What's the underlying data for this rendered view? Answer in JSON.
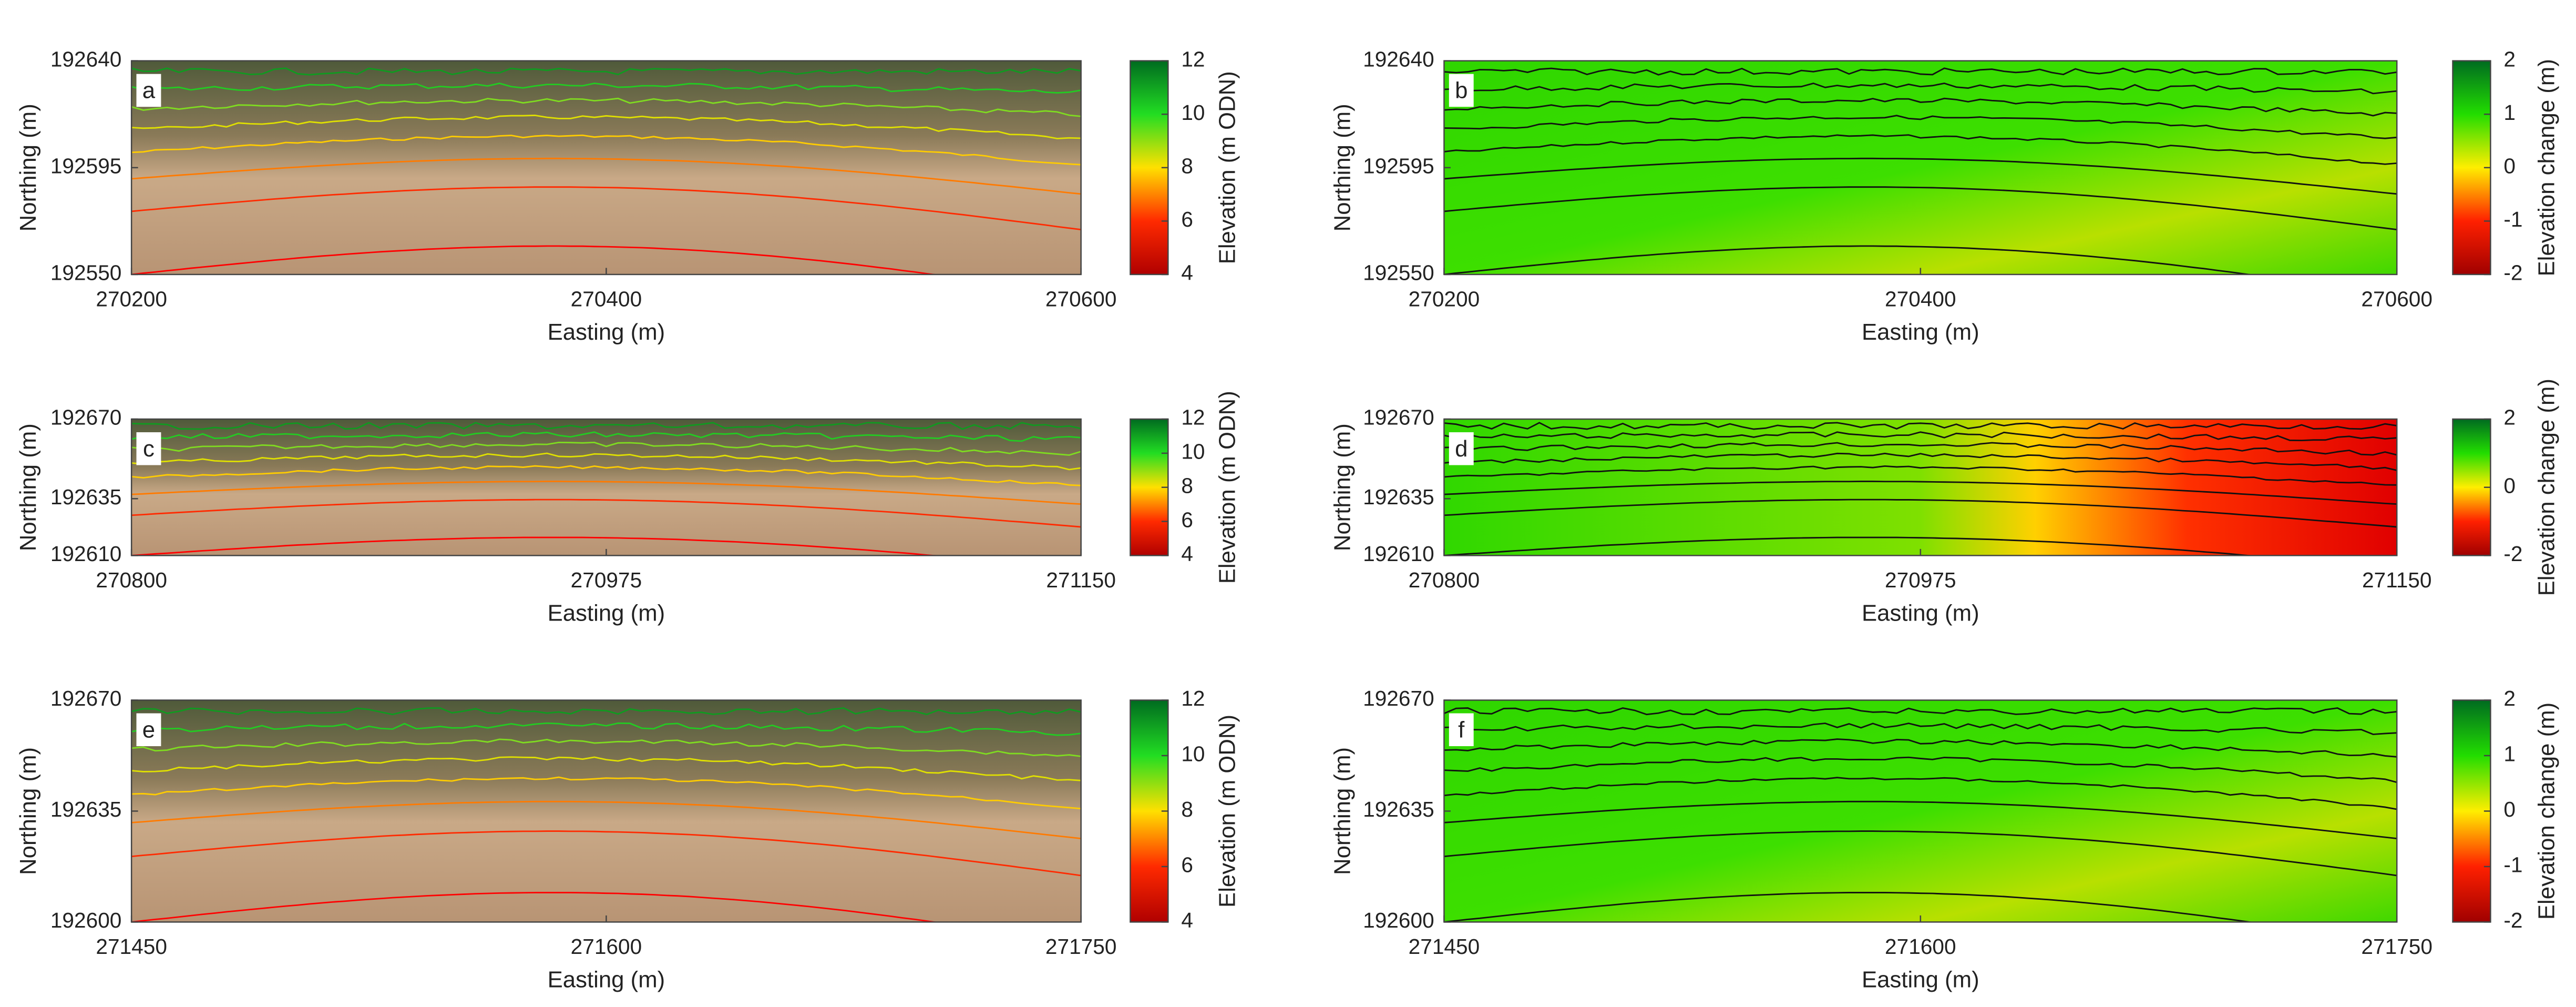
{
  "chart_data": [
    {
      "type": "raster",
      "label": "a",
      "xlabel": "Easting (m)",
      "ylabel": "Northing (m)",
      "xlim": [
        270200,
        270600
      ],
      "xticks": [
        270200,
        270400,
        270600
      ],
      "ylim": [
        192550,
        192640
      ],
      "yticks": [
        192550,
        192595,
        192640
      ],
      "colorbar": {
        "label": "Elevation (m ODN)",
        "lim": [
          4,
          12
        ],
        "ticks": [
          4,
          6,
          8,
          10,
          12
        ],
        "colors": [
          "#b00000",
          "#ff2a00",
          "#ffe000",
          "#22dd22",
          "#006b20"
        ]
      }
    },
    {
      "type": "raster",
      "label": "b",
      "xlabel": "Easting (m)",
      "ylabel": "Northing (m)",
      "xlim": [
        270200,
        270600
      ],
      "xticks": [
        270200,
        270400,
        270600
      ],
      "ylim": [
        192550,
        192640
      ],
      "yticks": [
        192550,
        192595,
        192640
      ],
      "colorbar": {
        "label": "Elevation change (m)",
        "lim": [
          -2,
          2
        ],
        "ticks": [
          -2,
          -1,
          0,
          1,
          2
        ],
        "colors": [
          "#a00000",
          "#ff2000",
          "#ffee00",
          "#22dd00",
          "#006b20"
        ]
      }
    },
    {
      "type": "raster",
      "label": "c",
      "xlabel": "Easting (m)",
      "ylabel": "Northing (m)",
      "xlim": [
        270800,
        271150
      ],
      "xticks": [
        270800,
        270975,
        271150
      ],
      "ylim": [
        192610,
        192670
      ],
      "yticks": [
        192610,
        192635,
        192670
      ],
      "colorbar": {
        "label": "Elevation (m ODN)",
        "lim": [
          4,
          12
        ],
        "ticks": [
          4,
          6,
          8,
          10,
          12
        ],
        "colors": [
          "#b00000",
          "#ff2a00",
          "#ffe000",
          "#22dd22",
          "#006b20"
        ]
      }
    },
    {
      "type": "raster",
      "label": "d",
      "xlabel": "Easting (m)",
      "ylabel": "Northing (m)",
      "xlim": [
        270800,
        271150
      ],
      "xticks": [
        270800,
        270975,
        271150
      ],
      "ylim": [
        192610,
        192670
      ],
      "yticks": [
        192610,
        192635,
        192670
      ],
      "colorbar": {
        "label": "Elevation change (m)",
        "lim": [
          -2,
          2
        ],
        "ticks": [
          -2,
          0,
          2
        ],
        "colors": [
          "#a00000",
          "#ff2000",
          "#ffee00",
          "#22dd00",
          "#006b20"
        ]
      }
    },
    {
      "type": "raster",
      "label": "e",
      "xlabel": "Easting (m)",
      "ylabel": "Northing (m)",
      "xlim": [
        271450,
        271750
      ],
      "xticks": [
        271450,
        271600,
        271750
      ],
      "ylim": [
        192600,
        192670
      ],
      "yticks": [
        192600,
        192635,
        192670
      ],
      "colorbar": {
        "label": "Elevation (m ODN)",
        "lim": [
          4,
          12
        ],
        "ticks": [
          4,
          6,
          8,
          10,
          12
        ],
        "colors": [
          "#b00000",
          "#ff2a00",
          "#ffe000",
          "#22dd22",
          "#006b20"
        ]
      }
    },
    {
      "type": "raster",
      "label": "f",
      "xlabel": "Easting (m)",
      "ylabel": "Northing (m)",
      "xlim": [
        271450,
        271750
      ],
      "xticks": [
        271450,
        271600,
        271750
      ],
      "ylim": [
        192600,
        192670
      ],
      "yticks": [
        192600,
        192635,
        192670
      ],
      "colorbar": {
        "label": "Elevation change (m)",
        "lim": [
          -2,
          2
        ],
        "ticks": [
          -2,
          -1,
          0,
          1,
          2
        ],
        "colors": [
          "#a00000",
          "#ff2000",
          "#ffee00",
          "#22dd00",
          "#006b20"
        ]
      }
    }
  ]
}
